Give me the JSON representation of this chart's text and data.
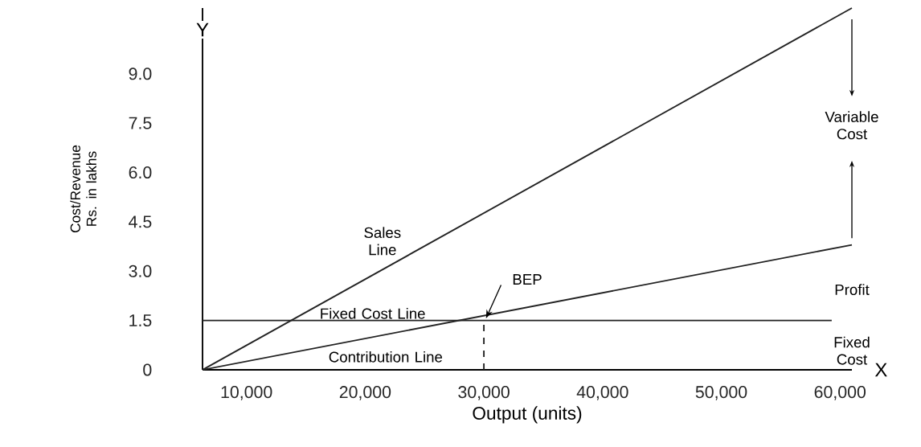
{
  "chart_data": {
    "type": "line",
    "xlabel": "Output (units)",
    "ylabel": "Cost/Revenue Rs. in lakhs",
    "xlim": [
      6300,
      61000
    ],
    "ylim": [
      0,
      11
    ],
    "xticks": [
      {
        "value": 10000,
        "label": "10,000"
      },
      {
        "value": 20000,
        "label": "20,000"
      },
      {
        "value": 30000,
        "label": "30,000"
      },
      {
        "value": 40000,
        "label": "40,000"
      },
      {
        "value": 50000,
        "label": "50,000"
      },
      {
        "value": 60000,
        "label": "60,000"
      }
    ],
    "yticks": [
      0,
      1.5,
      {
        "value": 3,
        "label": "3.0"
      },
      4.5,
      {
        "value": 6,
        "label": "6.0"
      },
      7.5,
      {
        "value": 9,
        "label": "9.0"
      }
    ],
    "grid": false,
    "line_style": "solid",
    "marker": "none",
    "series": [
      {
        "color": "#222222",
        "x": [
          6300,
          61000
        ],
        "values": [
          0,
          11.0
        ]
      },
      {
        "color": "#222222",
        "x": [
          6300,
          59300
        ],
        "values": [
          1.5,
          1.5
        ]
      },
      {
        "color": "#222222",
        "x": [
          6300,
          61000
        ],
        "values": [
          0,
          3.8
        ]
      },
      {
        "color": "#222222",
        "x": [
          30000,
          30000
        ],
        "values": [
          0,
          1.5
        ],
        "line_style": "dashed"
      }
    ],
    "annotations": [
      "Sales Line",
      "Fixed Cost Line",
      "Contribution Line",
      {
        "text": "BEP",
        "x": 30000,
        "y": 1.5
      },
      "Variable Cost",
      "Profit",
      "Fixed Cost",
      "Y",
      "X"
    ]
  }
}
